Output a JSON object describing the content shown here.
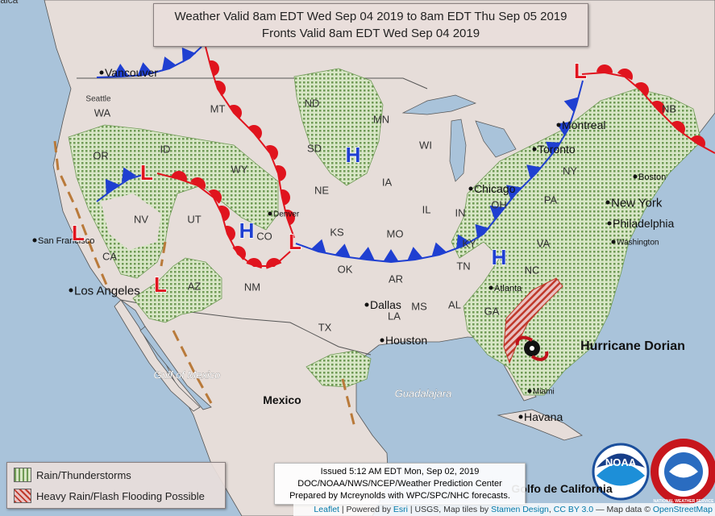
{
  "header": {
    "line1": "Weather Valid 8am EDT Wed Sep 04 2019 to 8am EDT Thu Sep 05 2019",
    "line2": "Fronts Valid 8am EDT Wed Sep 04 2019"
  },
  "places": [
    "Vancouver",
    "Seattle",
    "WA",
    "OR",
    "ID",
    "MT",
    "ND",
    "MN",
    "WY",
    "SD",
    "WI",
    "NE",
    "IA",
    "UT",
    "NV",
    "CA",
    "CO",
    "KS",
    "MO",
    "IL",
    "IN",
    "OH",
    "AZ",
    "NM",
    "OK",
    "AR",
    "TN",
    "KY",
    "TX",
    "LA",
    "MS",
    "AL",
    "GA",
    "VA",
    "NC",
    "PA",
    "NY",
    "NB",
    "Montreal",
    "Toronto",
    "Chicago",
    "Boston",
    "New York",
    "Philadelphia",
    "Washington",
    "Atlanta",
    "Dallas",
    "Houston",
    "San Francisco",
    "Los Angeles",
    "Denver",
    "Miami",
    "Havana",
    "Mexico",
    "Guadalajara",
    "Gulf of Mexico",
    "Golfo de California",
    "Jamaica"
  ],
  "pressure_centers": [
    "H",
    "H",
    "H",
    "L",
    "L",
    "L",
    "L",
    "L"
  ],
  "storm_label": "Hurricane Dorian",
  "legend": [
    "Rain/Thunderstorms",
    "Heavy Rain/Flash Flooding Possible"
  ],
  "issued": [
    "Issued 5:12 AM EDT Mon, Sep 02, 2019",
    "DOC/NOAA/NWS/NCEP/Weather Prediction Center",
    "Prepared by Mcreynolds with WPC/SPC/NHC forecasts."
  ],
  "attribution": [
    "Leaflet",
    "| Powered by",
    "Esri",
    "| USGS, Map tiles by",
    "Stamen Design",
    ",",
    "CC BY 3.0",
    "— Map data ©",
    "OpenStreetMap"
  ],
  "logos": [
    "NOAA",
    "NATIONAL WEATHER SERVICE"
  ]
}
